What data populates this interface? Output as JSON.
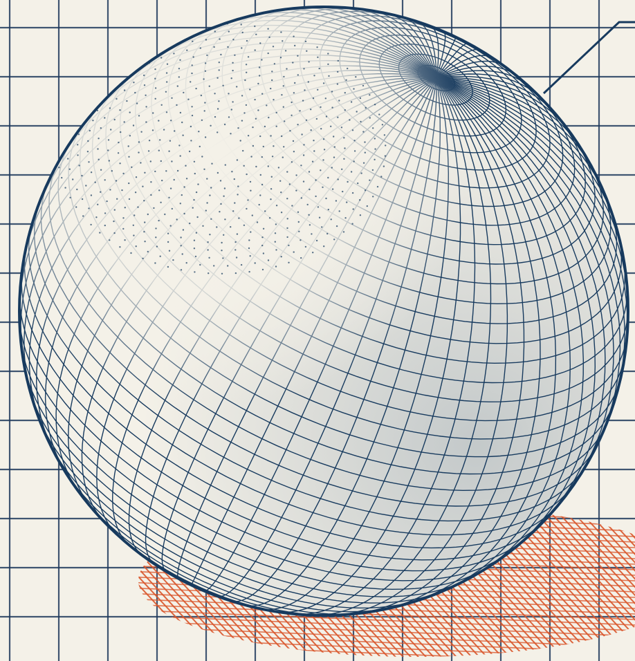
{
  "scene": {
    "subject": "sphere-wireframe",
    "palette": {
      "paper": "#f4f1e8",
      "grid": "#1e3a5c",
      "ink": "#173a5e",
      "shadow": "#d9552a"
    }
  }
}
